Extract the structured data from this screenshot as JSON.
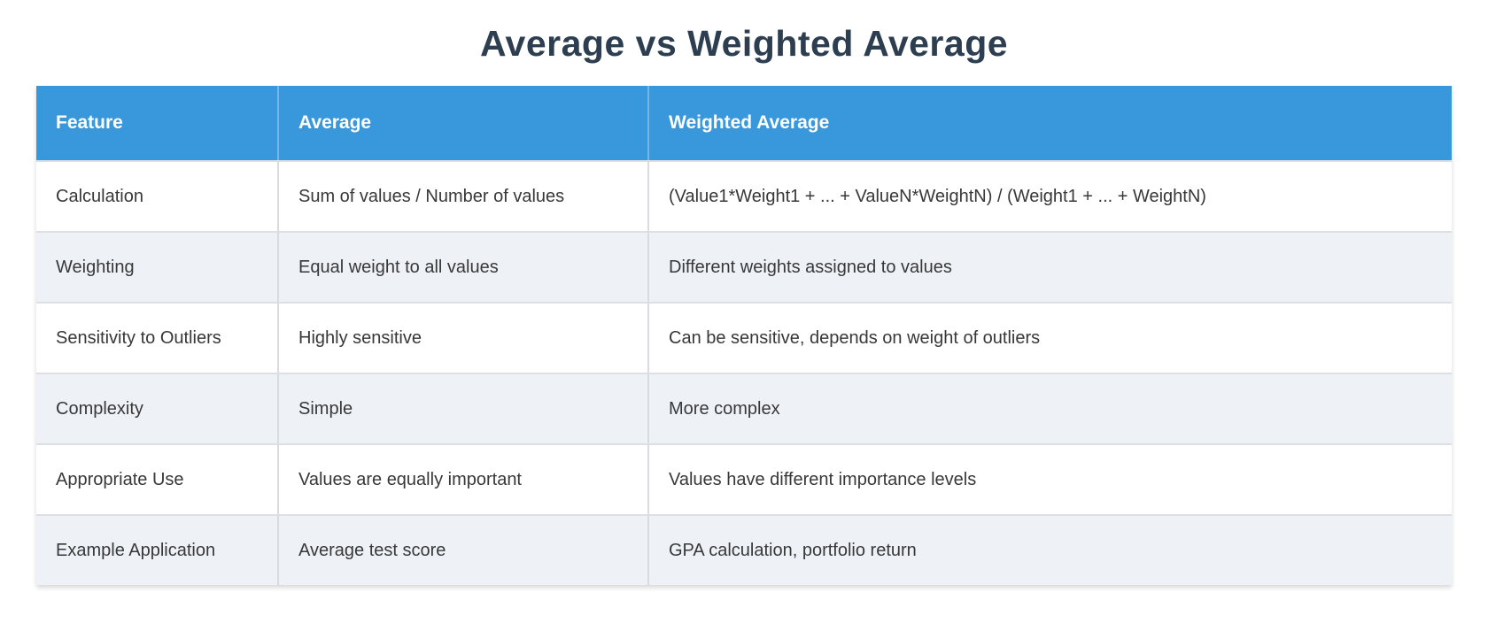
{
  "title": "Average vs Weighted Average",
  "colors": {
    "title_text": "#2c3e50",
    "header_background": "#3898db",
    "header_text": "#ffffff",
    "row_alt_background": "#eef2f7",
    "row_background": "#ffffff",
    "body_text": "#383838",
    "grid_line": "#d8dbdf"
  },
  "chart_data": {
    "type": "table",
    "title": "Average vs Weighted Average",
    "columns": [
      "Feature",
      "Average",
      "Weighted Average"
    ],
    "rows": [
      [
        "Calculation",
        "Sum of values / Number of values",
        "(Value1*Weight1 + ... + ValueN*WeightN) / (Weight1 + ... + WeightN)"
      ],
      [
        "Weighting",
        "Equal weight to all values",
        "Different weights assigned to values"
      ],
      [
        "Sensitivity to Outliers",
        "Highly sensitive",
        "Can be sensitive, depends on weight of outliers"
      ],
      [
        "Complexity",
        "Simple",
        "More complex"
      ],
      [
        "Appropriate Use",
        "Values are equally important",
        "Values have different importance levels"
      ],
      [
        "Example Application",
        "Average test score",
        "GPA calculation, portfolio return"
      ]
    ],
    "layout": {
      "header_position": "top",
      "striped_rows": true,
      "stripe_pattern": "even rows (2nd, 4th, 6th) tinted light blue-gray",
      "grid": "light gray column and row separators"
    }
  }
}
